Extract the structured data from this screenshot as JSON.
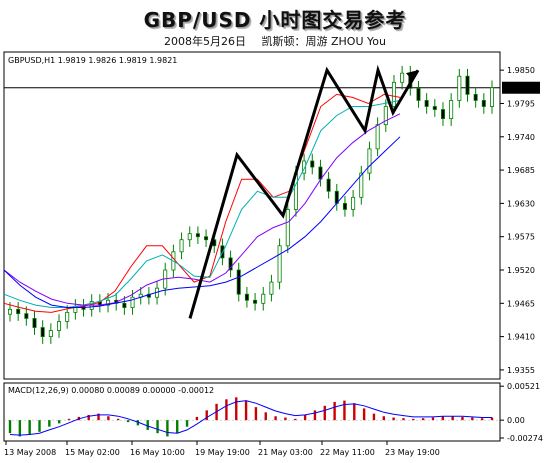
{
  "header": {
    "title": "GBP/USD  小时图交易参考",
    "date": "2008年5月26日",
    "author": "凯斯顿：周游 ZHOU You"
  },
  "chart_data": [
    {
      "type": "candlestick",
      "symbol_info": "GBPUSD,H1  1.9819 1.9826 1.9819 1.9821",
      "y_ticks": [
        "1.9850",
        "1.9795",
        "1.9740",
        "1.9685",
        "1.9630",
        "1.9575",
        "1.9520",
        "1.9465",
        "1.9410",
        "1.9355"
      ],
      "ylim": [
        1.934,
        1.988
      ],
      "current_price": "1.9821",
      "x_ticks": [
        "13 May 2008",
        "15 May 02:00",
        "16 May 10:00",
        "19 May 19:00",
        "21 May 03:00",
        "22 May 11:00",
        "23 May 19:00"
      ],
      "series": [
        {
          "role": "close",
          "color": "#008000",
          "values": [
            1.9455,
            1.9448,
            1.944,
            1.9425,
            1.941,
            1.942,
            1.9435,
            1.945,
            1.946,
            1.9455,
            1.9468,
            1.9462,
            1.947,
            1.9465,
            1.9458,
            1.9475,
            1.948,
            1.9475,
            1.949,
            1.952,
            1.955,
            1.957,
            1.958,
            1.9575,
            1.957,
            1.956,
            1.954,
            1.952,
            1.948,
            1.947,
            1.9465,
            1.948,
            1.95,
            1.956,
            1.962,
            1.968,
            1.97,
            1.969,
            1.967,
            1.965,
            1.963,
            1.962,
            1.964,
            1.968,
            1.972,
            1.976,
            1.979,
            1.983,
            1.9845,
            1.982,
            1.98,
            1.979,
            1.9785,
            1.977,
            1.98,
            1.984,
            1.981,
            1.98,
            1.979,
            1.9821
          ]
        },
        {
          "role": "ma-fast",
          "color": "#ff0000",
          "values": [
            1.9465,
            1.9458,
            1.9452,
            1.945,
            1.9456,
            1.946,
            1.9466,
            1.9485,
            1.9525,
            1.956,
            1.956,
            1.953,
            1.95,
            1.951,
            1.96,
            1.967,
            1.967,
            1.964,
            1.965,
            1.972,
            1.979,
            1.981,
            1.9805,
            1.9795,
            1.981,
            1.9805
          ]
        },
        {
          "role": "ma-mid",
          "color": "#00b0b0",
          "values": [
            1.948,
            1.947,
            1.9462,
            1.9458,
            1.9458,
            1.9462,
            1.9468,
            1.9478,
            1.9505,
            1.9535,
            1.9545,
            1.953,
            1.951,
            1.9508,
            1.956,
            1.962,
            1.965,
            1.964,
            1.964,
            1.969,
            1.975,
            1.9775,
            1.979,
            1.979,
            1.9795,
            1.98
          ]
        },
        {
          "role": "ma-slow",
          "color": "#8000ff",
          "values": [
            1.952,
            1.95,
            1.9485,
            1.9472,
            1.9465,
            1.9462,
            1.9462,
            1.9466,
            1.9478,
            1.9495,
            1.9505,
            1.9508,
            1.9505,
            1.95,
            1.9515,
            1.9545,
            1.9575,
            1.959,
            1.96,
            1.963,
            1.967,
            1.9705,
            1.973,
            1.975,
            1.9765,
            1.9778
          ]
        },
        {
          "role": "ma-slowest",
          "color": "#0000ff",
          "values": [
            1.952,
            1.9495,
            1.9475,
            1.9462,
            1.9458,
            1.9458,
            1.946,
            1.9465,
            1.947,
            1.9478,
            1.9486,
            1.949,
            1.9492,
            1.9494,
            1.95,
            1.951,
            1.9525,
            1.954,
            1.9555,
            1.9575,
            1.96,
            1.963,
            1.966,
            1.969,
            1.9715,
            1.974
          ]
        },
        {
          "role": "annotation-zigzag",
          "color": "#000000",
          "values": [
            1.944,
            1.971,
            1.961,
            1.985,
            1.975,
            1.985,
            1.978,
            1.985
          ]
        }
      ]
    },
    {
      "type": "bar",
      "title": "MACD(12,26,9)  0.00080  0.00089  0.00000  -0.00012",
      "y_ticks": [
        "0.00521",
        "0.00",
        "-0.00274"
      ],
      "ylim": [
        -0.0032,
        0.0057
      ],
      "series": [
        {
          "name": "MACD",
          "color": "#008000",
          "values": [
            -0.002,
            -0.0025,
            -0.0022,
            -0.0018,
            -0.001,
            -0.0005,
            0.0002,
            0.0005,
            0.0008,
            0.001,
            0.0006,
            0.0002,
            -0.0003,
            -0.0008,
            -0.0015,
            -0.002,
            -0.0025,
            -0.002,
            -0.001,
            0.0005,
            0.0015,
            0.0025,
            0.0032,
            0.0035,
            0.003,
            0.002,
            0.0012,
            0.0006,
            0.0004,
            0.0002,
            0.0008,
            0.0015,
            0.0022,
            0.0028,
            0.003,
            0.0026,
            0.0018,
            0.001,
            0.0006,
            0.0004,
            0.0003,
            0.0002,
            0.0003,
            0.0004,
            0.0006,
            0.0006,
            0.0005,
            0.0004,
            0.0003,
            0.0004
          ]
        },
        {
          "name": "Signal",
          "color": "#0000ff",
          "values": [
            -0.0022,
            -0.0023,
            -0.0022,
            -0.002,
            -0.0015,
            -0.001,
            -0.0004,
            0.0002,
            0.0006,
            0.0008,
            0.0008,
            0.0006,
            0.0002,
            -0.0003,
            -0.0009,
            -0.0014,
            -0.0019,
            -0.002,
            -0.0015,
            -0.0006,
            0.0004,
            0.0013,
            0.0022,
            0.0028,
            0.003,
            0.0026,
            0.002,
            0.0014,
            0.001,
            0.0007,
            0.0008,
            0.0011,
            0.0015,
            0.002,
            0.0024,
            0.0025,
            0.0022,
            0.0017,
            0.0012,
            0.0009,
            0.0007,
            0.0005,
            0.0005,
            0.0005,
            0.0006,
            0.0006,
            0.0006,
            0.0005,
            0.0004,
            0.0004
          ]
        }
      ]
    }
  ]
}
